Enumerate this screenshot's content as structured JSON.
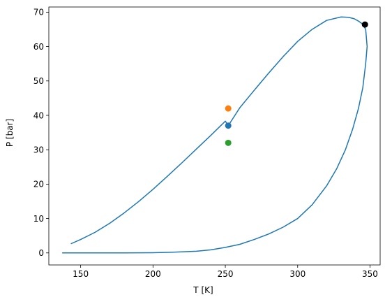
{
  "chart_data": {
    "type": "line",
    "title": "",
    "xlabel": "T [K]",
    "ylabel": "P [bar]",
    "xlim": [
      128,
      357
    ],
    "ylim": [
      -3.5,
      71.5
    ],
    "grid": false,
    "legend": "none",
    "xticks": [
      150,
      200,
      250,
      300,
      350
    ],
    "yticks": [
      0,
      10,
      20,
      30,
      40,
      50,
      60,
      70
    ],
    "series": [
      {
        "color": "#1f77b4",
        "x": [
          143.5,
          150,
          160,
          170,
          180,
          190,
          200,
          210,
          220,
          230,
          240,
          250,
          252,
          260,
          270,
          280,
          290,
          300,
          310,
          320,
          330,
          335,
          339,
          342,
          345,
          347,
          348,
          347,
          345,
          342,
          338,
          333,
          327,
          320,
          310,
          300,
          290,
          280,
          270,
          260,
          250,
          240,
          230,
          220,
          210,
          200,
          190,
          180,
          170,
          160,
          150,
          137.5
        ],
        "y": [
          2.7,
          3.9,
          6.0,
          8.6,
          11.6,
          14.9,
          18.5,
          22.3,
          26.2,
          30.2,
          34.2,
          38.3,
          37.0,
          42.2,
          47.3,
          52.3,
          57.1,
          61.5,
          65.0,
          67.6,
          68.6,
          68.5,
          68.1,
          67.4,
          66.5,
          65.0,
          60.0,
          55.0,
          48.0,
          42.0,
          36.0,
          30.0,
          24.5,
          19.5,
          14.0,
          10.0,
          7.5,
          5.5,
          3.9,
          2.5,
          1.6,
          0.9,
          0.5,
          0.3,
          0.15,
          0.07,
          0.03,
          0.015,
          0.006,
          0.002,
          0.001,
          0.0
        ]
      }
    ],
    "points": [
      {
        "x": 252,
        "y": 37.0,
        "color": "#1f77b4"
      },
      {
        "x": 252,
        "y": 42.0,
        "color": "#ff7f0e"
      },
      {
        "x": 252,
        "y": 32.0,
        "color": "#2ca02c"
      },
      {
        "x": 346.5,
        "y": 66.4,
        "color": "#000000"
      }
    ]
  }
}
